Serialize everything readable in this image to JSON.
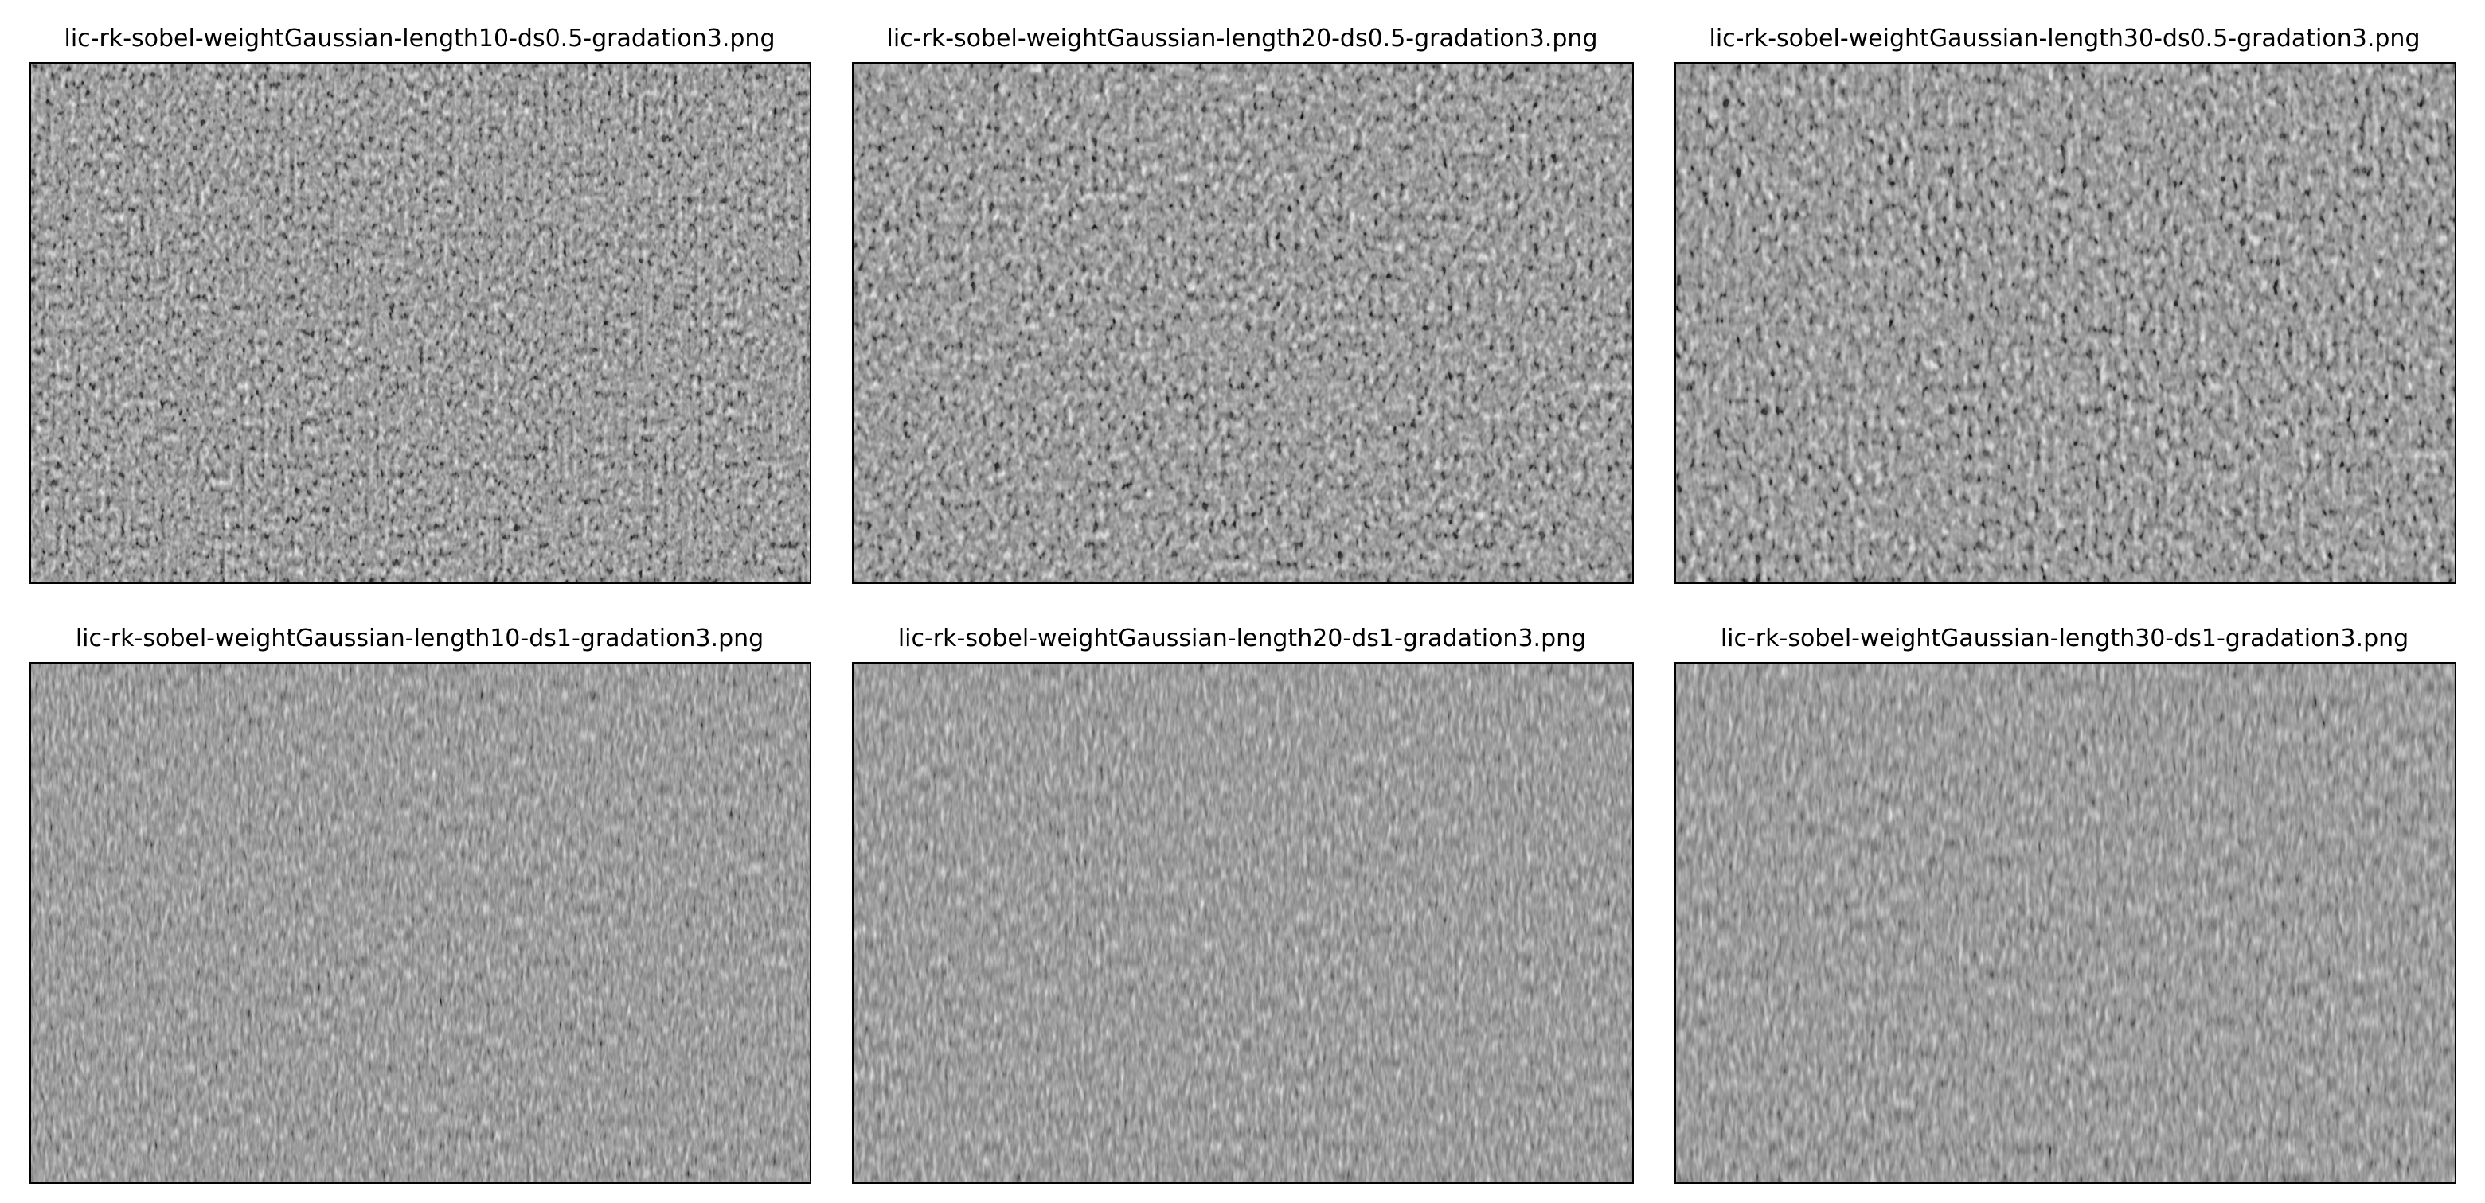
{
  "panels": [
    {
      "title": "lic-rk-sobel-weightGaussian-length10-ds0.5-gradation3.png"
    },
    {
      "title": "lic-rk-sobel-weightGaussian-length20-ds0.5-gradation3.png"
    },
    {
      "title": "lic-rk-sobel-weightGaussian-length30-ds0.5-gradation3.png"
    },
    {
      "title": "lic-rk-sobel-weightGaussian-length10-ds1-gradation3.png"
    },
    {
      "title": "lic-rk-sobel-weightGaussian-length20-ds1-gradation3.png"
    },
    {
      "title": "lic-rk-sobel-weightGaussian-length30-ds1-gradation3.png"
    }
  ],
  "colors": {
    "background": "#ffffff",
    "frame": "#000000",
    "texture_base": "#808080"
  }
}
